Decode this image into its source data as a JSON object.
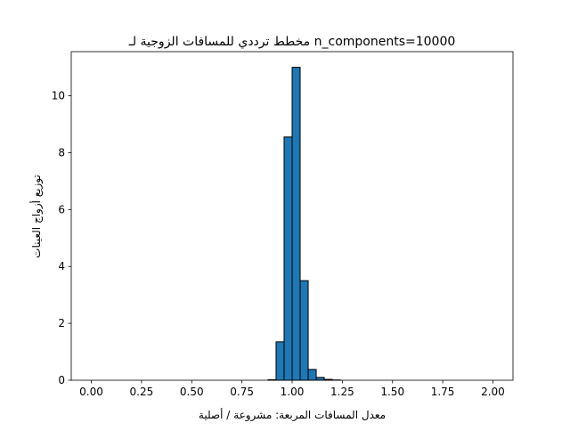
{
  "chart_data": {
    "type": "bar",
    "title": "مخطط ترددي للمسافات الزوجية لـ n_components=10000",
    "xlabel": "معدل المسافات المربعة: مشروعة / أصلية",
    "ylabel": "توزيع أزواج العينات",
    "xlim": [
      -0.1,
      2.1
    ],
    "ylim": [
      0,
      11.55
    ],
    "xticks": [
      "0.00",
      "0.25",
      "0.50",
      "0.75",
      "1.00",
      "1.25",
      "1.50",
      "1.75",
      "2.00"
    ],
    "xtick_values": [
      0.0,
      0.25,
      0.5,
      0.75,
      1.0,
      1.25,
      1.5,
      1.75,
      2.0
    ],
    "yticks": [
      "0",
      "2",
      "4",
      "6",
      "8",
      "10"
    ],
    "ytick_values": [
      0,
      2,
      4,
      6,
      8,
      10
    ],
    "bin_width": 0.04,
    "bins": [
      {
        "x0": 0.88,
        "x1": 0.92,
        "value": 0.02
      },
      {
        "x0": 0.92,
        "x1": 0.96,
        "value": 1.35
      },
      {
        "x0": 0.96,
        "x1": 1.0,
        "value": 8.55
      },
      {
        "x0": 1.0,
        "x1": 1.04,
        "value": 11.0
      },
      {
        "x0": 1.04,
        "x1": 1.08,
        "value": 3.5
      },
      {
        "x0": 1.08,
        "x1": 1.12,
        "value": 0.38
      },
      {
        "x0": 1.12,
        "x1": 1.16,
        "value": 0.1
      },
      {
        "x0": 1.16,
        "x1": 1.2,
        "value": 0.03
      },
      {
        "x0": 1.2,
        "x1": 1.24,
        "value": 0.01
      }
    ],
    "bar_color": "#1f77b4",
    "edge_color": "#000000",
    "grid": false,
    "legend": "none"
  }
}
